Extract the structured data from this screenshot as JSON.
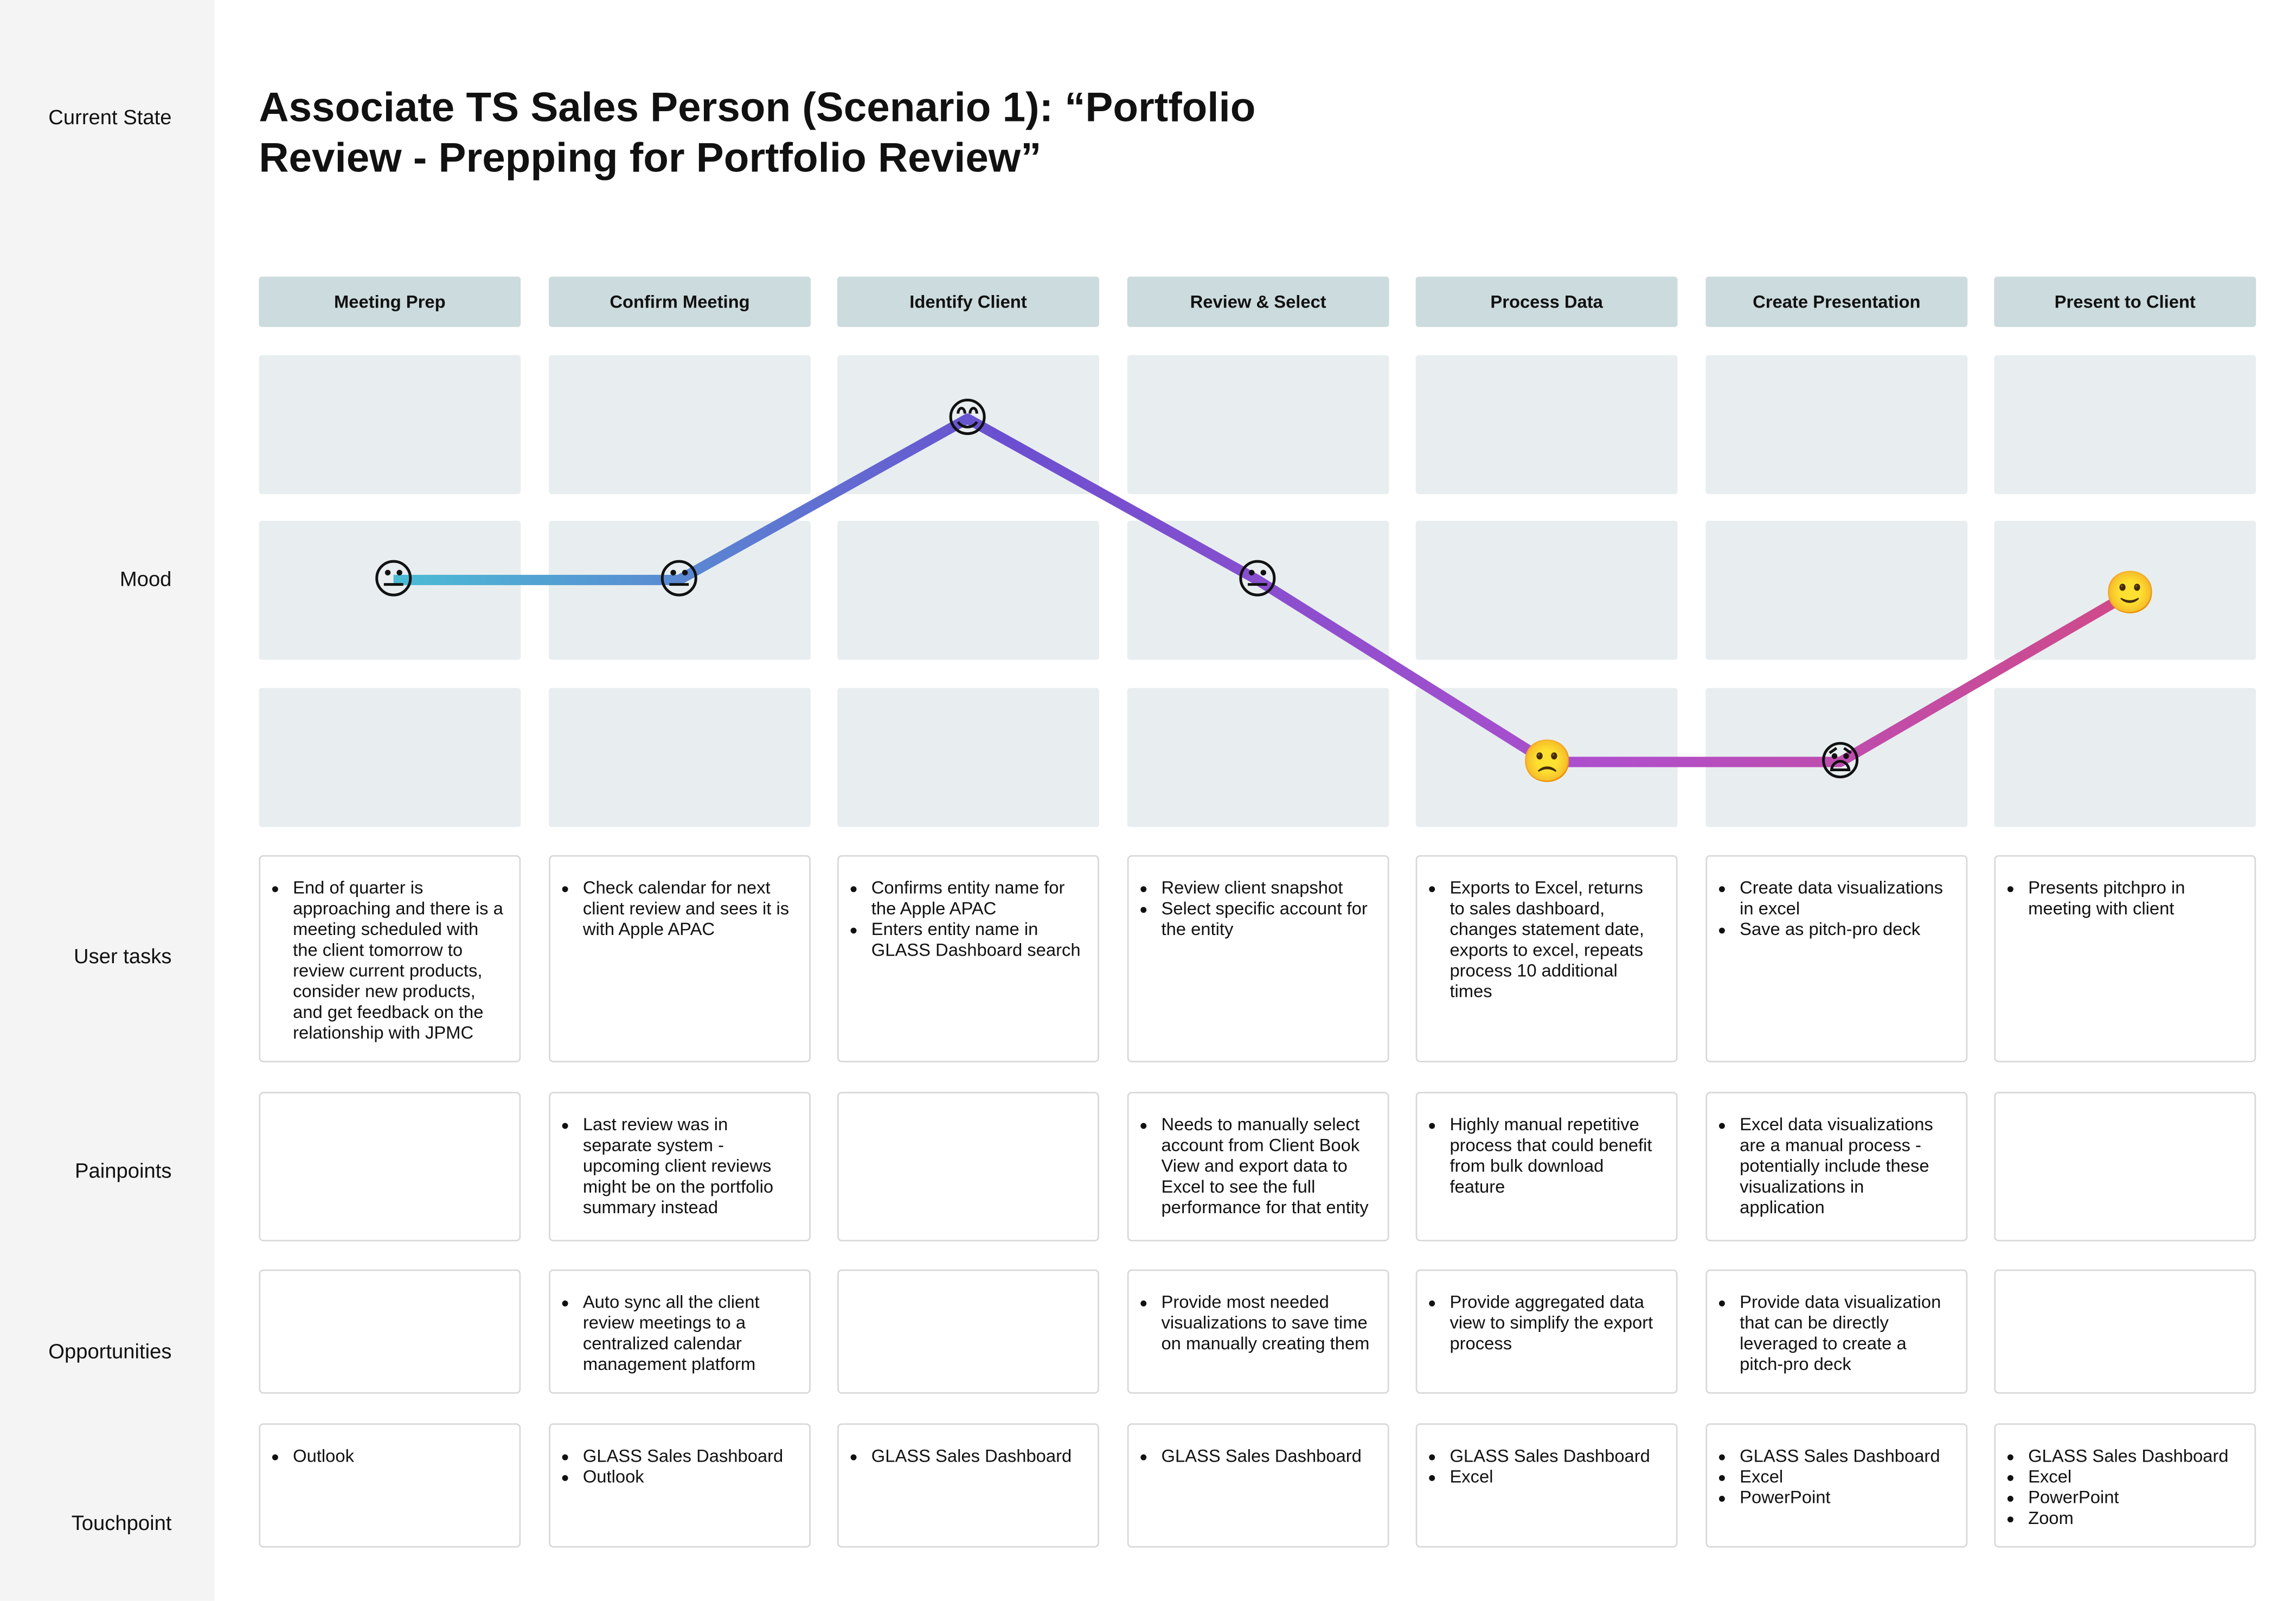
{
  "title": "Associate TS Sales Person (Scenario 1): “Portfolio Review - Prepping for Portfolio Review”",
  "row_labels": [
    "Current State",
    "Mood",
    "User tasks",
    "Painpoints",
    "Opportunities",
    "Touchpoint"
  ],
  "stages": [
    {
      "name": "Meeting Prep",
      "mood": "😐",
      "tasks": [
        "End of quarter is approaching and there is a meeting scheduled with the client tomorrow to review current products, consider new products, and get feedback on the relationship with JPMC"
      ],
      "painpoints": [],
      "opportunities": [],
      "touchpoints": [
        "Outlook"
      ]
    },
    {
      "name": "Confirm Meeting",
      "mood": "😐",
      "tasks": [
        "Check calendar for next client review and sees it is with Apple APAC"
      ],
      "painpoints": [
        "Last review was in separate system - upcoming client reviews might be on the portfolio summary instead"
      ],
      "opportunities": [
        "Auto sync all the client review meetings to a centralized calendar management platform"
      ],
      "touchpoints": [
        "GLASS Sales Dashboard",
        "Outlook"
      ]
    },
    {
      "name": "Identify Client",
      "mood": "😊",
      "tasks": [
        "Confirms entity name for the Apple APAC",
        "Enters entity name in GLASS Dashboard search"
      ],
      "painpoints": [],
      "opportunities": [],
      "touchpoints": [
        "GLASS Sales Dashboard"
      ]
    },
    {
      "name": "Review & Select",
      "mood": "😐",
      "tasks": [
        "Review client snapshot",
        "Select specific account for the entity"
      ],
      "painpoints": [
        "Needs to manually select account from Client Book View and export data to Excel to see the full performance for that entity"
      ],
      "opportunities": [
        "Provide most needed visualizations to save time on manually creating them"
      ],
      "touchpoints": [
        "GLASS Sales Dashboard"
      ]
    },
    {
      "name": "Process Data",
      "mood": "🙁",
      "tasks": [
        "Exports to Excel, returns to sales dashboard, changes statement date, exports to excel, repeats process 10 additional times"
      ],
      "painpoints": [
        "Highly manual repetitive process that could benefit from bulk download feature"
      ],
      "opportunities": [
        "Provide aggregated data view to simplify the export process"
      ],
      "touchpoints": [
        "GLASS Sales Dashboard",
        "Excel"
      ]
    },
    {
      "name": "Create Presentation",
      "mood": "😧",
      "tasks": [
        "Create data visualizations in excel",
        "Save as pitch-pro deck"
      ],
      "painpoints": [
        "Excel data visualizations are a manual process - potentially include these visualizations in application"
      ],
      "opportunities": [
        "Provide data visualization that can be directly leveraged to create a pitch-pro deck"
      ],
      "touchpoints": [
        "GLASS Sales Dashboard",
        "Excel",
        "PowerPoint"
      ]
    },
    {
      "name": "Present to Client",
      "mood": "🙂",
      "tasks": [
        "Presents pitchpro in meeting with client"
      ],
      "painpoints": [],
      "opportunities": [],
      "touchpoints": [
        "GLASS Sales Dashboard",
        "Excel",
        "PowerPoint",
        "Zoom"
      ]
    }
  ]
}
